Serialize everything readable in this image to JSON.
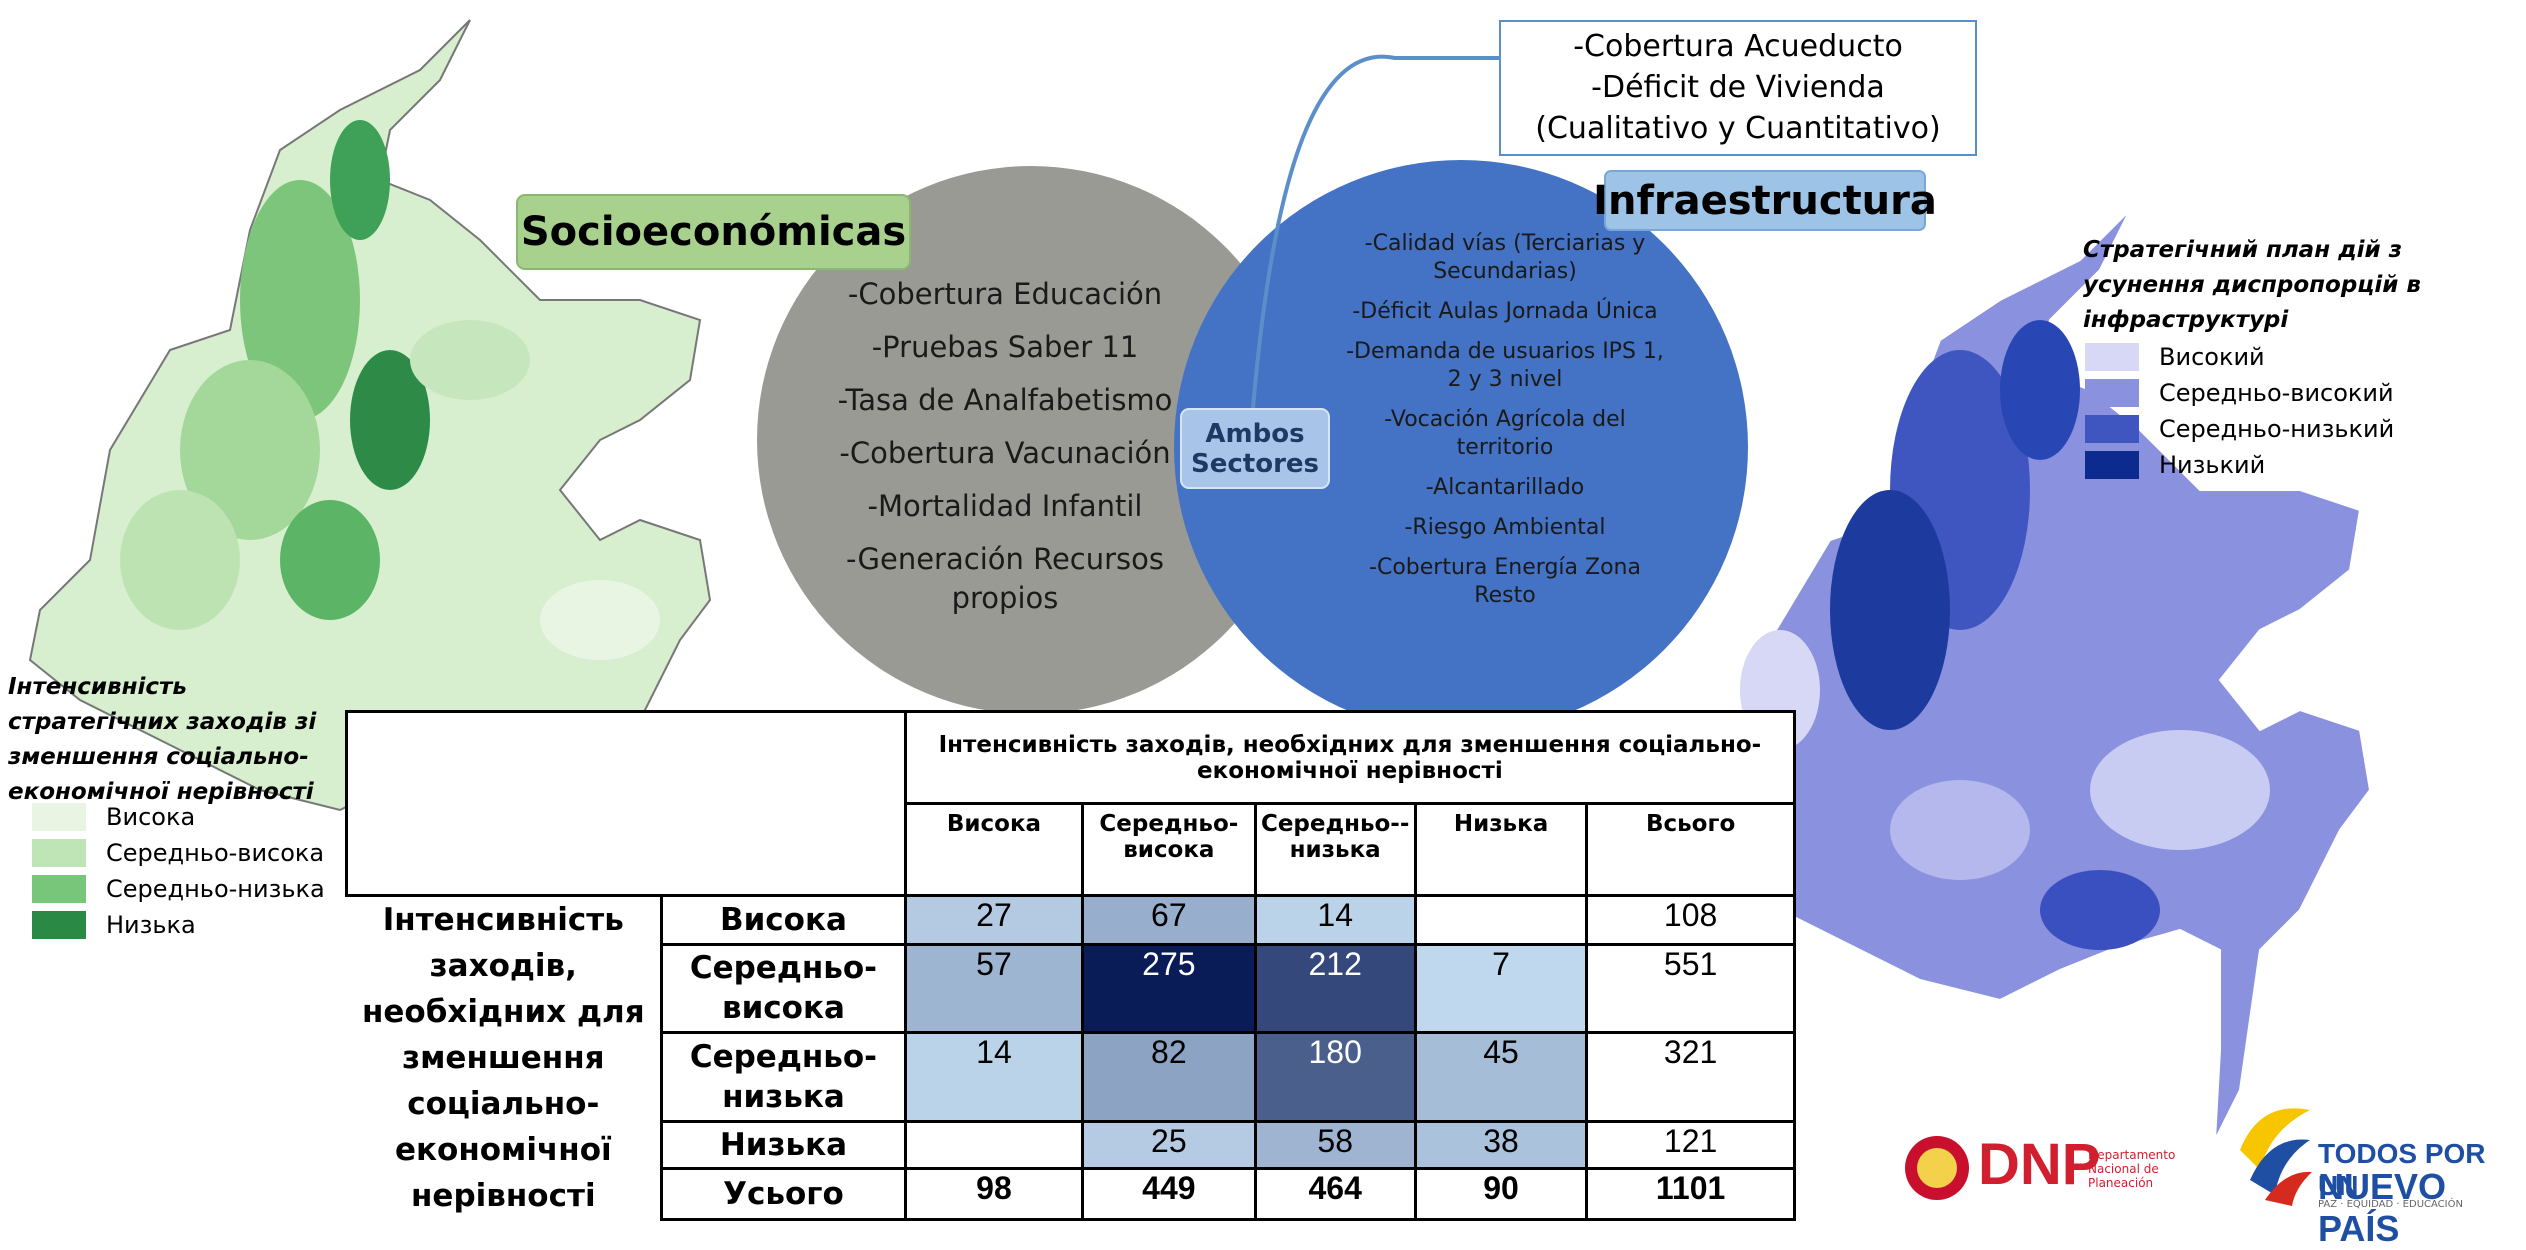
{
  "left_legend": {
    "title": "Інтенсивність стратегічних заходів зі зменшення соціально-економічної нерівності",
    "items": [
      "Висока",
      "Середньо-висока",
      "Середньо-низька",
      "Низька"
    ]
  },
  "right_legend": {
    "title": "Стратегічний план дій з усунення диспропорцій в інфраструктурі",
    "items": [
      "Високий",
      "Середньо-високий",
      "Середньо-низький",
      "Низький"
    ]
  },
  "venn": {
    "socio_label": "Socioeconómicas",
    "socio_items": [
      "-Cobertura Educación",
      "-Pruebas Saber 11",
      "-Tasa de Analfabetismo",
      "-Cobertura Vacunación",
      "-Mortalidad Infantil",
      "-Generación Recursos propios"
    ],
    "infra_label": "Infraestructura",
    "infra_items": [
      "-Calidad vías (Terciarias y Secundarias)",
      "-Déficit Aulas Jornada Única",
      "-Demanda de usuarios IPS 1, 2 y 3 nivel",
      "-Vocación Agrícola del territorio",
      "-Alcantarillado",
      "-Riesgo Ambiental",
      "-Cobertura Energía Zona Resto"
    ],
    "shared_label": "Ambos Sectores",
    "callout_items": [
      "-Cobertura Acueducto",
      "-Déficit de Vivienda (Cualitativo y Cuantitativo)"
    ]
  },
  "table": {
    "column_group": "Інтенсивність заходів, необхідних для зменшення соціально-економічної нерівності",
    "columns": [
      "Висока",
      "Середньо-висока",
      "Середньо--низька",
      "Низька",
      "Всього"
    ],
    "row_group": "Інтенсивність заходів, необхідних для зменшення соціально-економічної нерівності",
    "rows": [
      {
        "label": "Висока",
        "cells": [
          27,
          67,
          14,
          null,
          108
        ]
      },
      {
        "label": "Середньо-висока",
        "cells": [
          57,
          275,
          212,
          7,
          551
        ]
      },
      {
        "label": "Середньо-низька",
        "cells": [
          14,
          82,
          180,
          45,
          321
        ]
      },
      {
        "label": "Низька",
        "cells": [
          null,
          25,
          58,
          38,
          121
        ]
      },
      {
        "label": "Усього",
        "cells": [
          98,
          449,
          464,
          90,
          1101
        ]
      }
    ]
  },
  "logos": {
    "dnp": "DNP",
    "dnp_sub": "Departamento Nacional de Planeación",
    "slogan_top": "TODOS POR UN",
    "slogan_main": "NUEVO PAÍS",
    "slogan_sub": "PAZ · EQUIDAD · EDUCACIÓN"
  }
}
